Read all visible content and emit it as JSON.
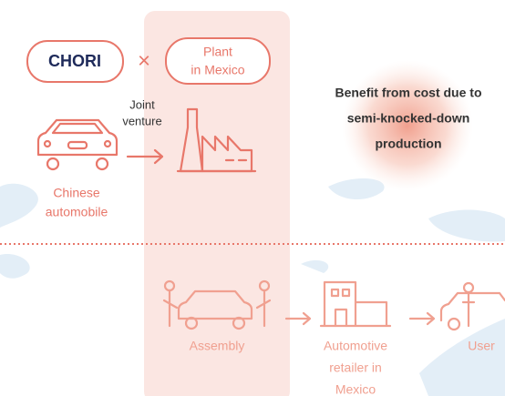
{
  "logo": "CHORI",
  "times": "×",
  "partner": [
    "Plant",
    "in Mexico"
  ],
  "relation": [
    "Joint",
    "venture"
  ],
  "source": [
    "Chinese",
    "automobile"
  ],
  "benefit": [
    "Benefit from cost due to",
    "semi-knocked-down",
    "production"
  ],
  "flow": [
    {
      "label": [
        "Assembly"
      ]
    },
    {
      "label": [
        "Automotive",
        "retailer in",
        "Mexico"
      ]
    },
    {
      "label": [
        "User"
      ]
    }
  ]
}
